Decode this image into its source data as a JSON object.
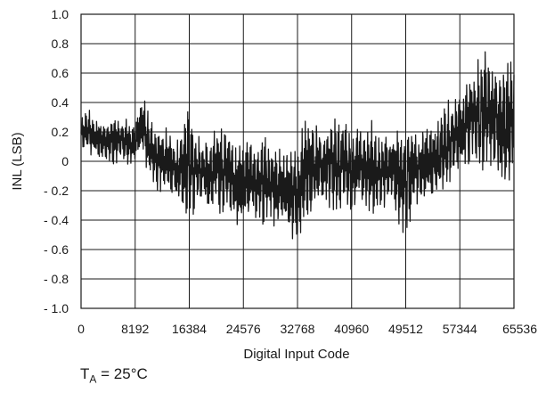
{
  "chart_data": {
    "type": "line",
    "title": "",
    "xlabel": "Digital Input Code",
    "ylabel": "INL (LSB)",
    "xlim": [
      0,
      65536
    ],
    "ylim": [
      -1.0,
      1.0
    ],
    "grid": true,
    "legend": "none",
    "x_ticks": [
      "0",
      "8192",
      "16384",
      "24576",
      "32768",
      "40960",
      "49512",
      "57344",
      "65536"
    ],
    "y_ticks": [
      "1.0",
      "0.8",
      "0.6",
      "0.4",
      "0.2",
      "0",
      "- 0.2",
      "- 0.4",
      "- 0.6",
      "- 0.8",
      "- 1.0"
    ],
    "series": [
      {
        "color": "#1a1a1a",
        "x": [
          0,
          1024,
          2048,
          3072,
          4096,
          5120,
          6144,
          7168,
          8192,
          9216,
          10240,
          11264,
          12288,
          13312,
          14336,
          15360,
          16384,
          17408,
          18432,
          19456,
          20480,
          21504,
          22528,
          23552,
          24576,
          25600,
          26624,
          27648,
          28672,
          29696,
          30720,
          31744,
          32768,
          33792,
          34816,
          35840,
          36864,
          37888,
          38912,
          39936,
          40960,
          41984,
          43008,
          44032,
          45056,
          46080,
          47104,
          48128,
          49152,
          50176,
          51200,
          52224,
          53248,
          54272,
          55296,
          56320,
          57344,
          58368,
          59392,
          60416,
          61440,
          62464,
          63488,
          64512,
          65536
        ],
        "y_high": [
          0.3,
          0.37,
          0.3,
          0.32,
          0.25,
          0.33,
          0.28,
          0.3,
          0.25,
          0.49,
          0.32,
          0.2,
          0.25,
          0.26,
          0.15,
          0.22,
          0.42,
          0.22,
          0.18,
          0.15,
          0.28,
          0.22,
          0.25,
          0.12,
          0.2,
          0.18,
          0.15,
          0.18,
          0.1,
          0.14,
          0.08,
          0.12,
          0.06,
          0.34,
          0.28,
          0.3,
          0.26,
          0.32,
          0.26,
          0.3,
          0.2,
          0.28,
          0.18,
          0.28,
          0.22,
          0.24,
          0.22,
          0.24,
          0.26,
          0.28,
          0.2,
          0.3,
          0.26,
          0.34,
          0.4,
          0.46,
          0.45,
          0.63,
          0.68,
          0.7,
          0.76,
          0.7,
          0.72,
          0.75,
          0.68
        ],
        "y_low": [
          0.06,
          0.05,
          0.02,
          -0.02,
          0.0,
          -0.04,
          0.02,
          -0.05,
          -0.02,
          0.05,
          -0.12,
          -0.2,
          -0.22,
          -0.26,
          -0.3,
          -0.36,
          -0.48,
          -0.3,
          -0.28,
          -0.4,
          -0.34,
          -0.38,
          -0.36,
          -0.46,
          -0.5,
          -0.4,
          -0.44,
          -0.48,
          -0.42,
          -0.5,
          -0.44,
          -0.55,
          -0.6,
          -0.42,
          -0.38,
          -0.34,
          -0.3,
          -0.32,
          -0.36,
          -0.3,
          -0.38,
          -0.3,
          -0.34,
          -0.38,
          -0.4,
          -0.34,
          -0.3,
          -0.46,
          -0.5,
          -0.38,
          -0.3,
          -0.34,
          -0.28,
          -0.24,
          -0.2,
          -0.14,
          -0.06,
          -0.1,
          0.0,
          -0.15,
          -0.12,
          -0.05,
          -0.28,
          -0.32,
          -0.05
        ]
      }
    ]
  },
  "annotations": {
    "temperature_symbol": "T",
    "temperature_subscript": "A",
    "temperature_value": " = 25°C"
  }
}
